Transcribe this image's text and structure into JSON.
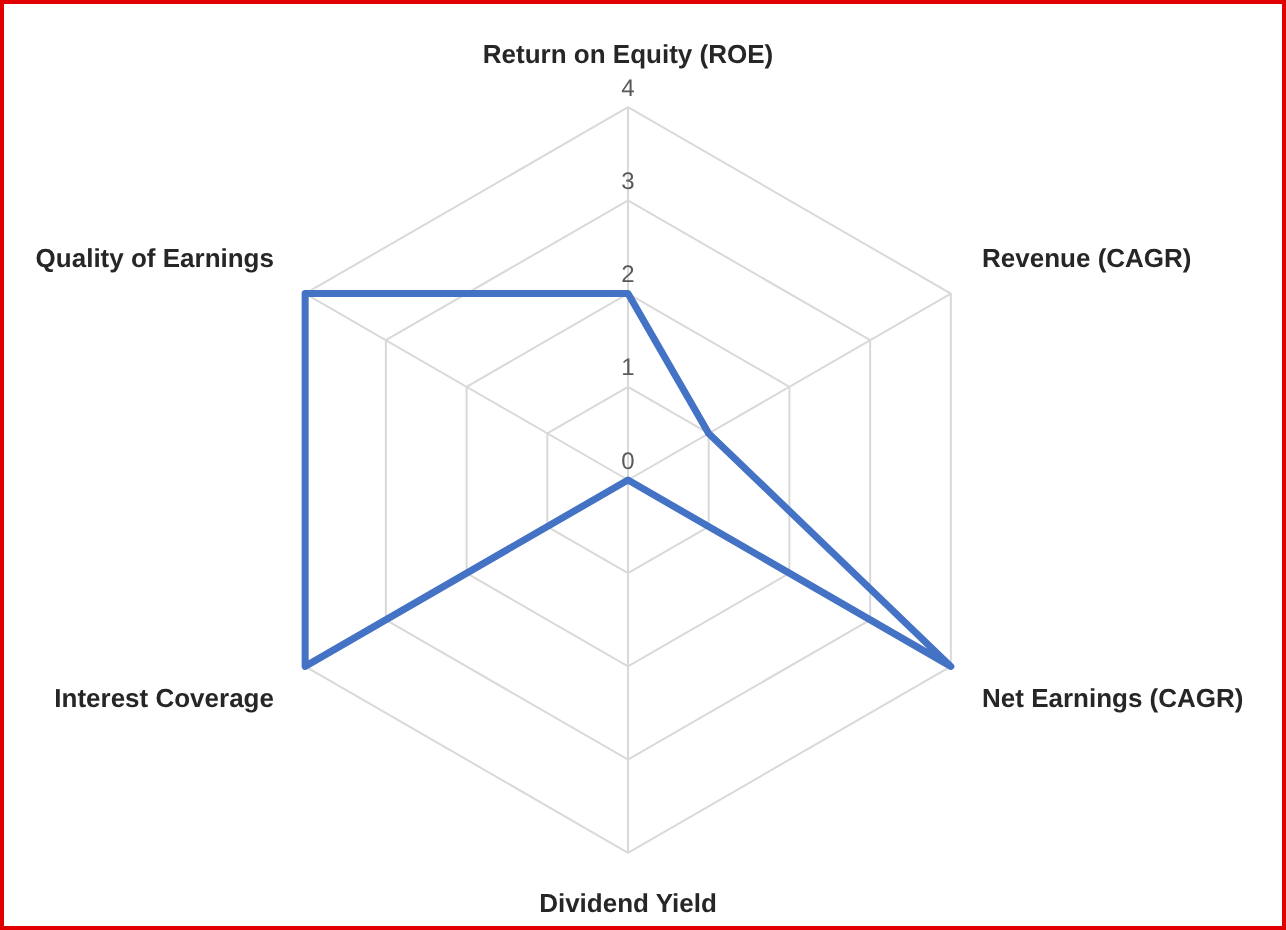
{
  "chart_data": {
    "type": "radar",
    "categories": [
      "Return on Equity (ROE)",
      "Revenue (CAGR)",
      "Net Earnings (CAGR)",
      "Dividend Yield",
      "Interest Coverage",
      "Quality of Earnings"
    ],
    "series": [
      {
        "color": "#4472c4",
        "values": [
          2,
          1,
          4,
          0,
          4,
          4
        ]
      }
    ],
    "ylim": [
      0,
      4
    ],
    "yticks": [
      0,
      1,
      2,
      3,
      4
    ],
    "grid": true,
    "legend": false,
    "marker": "none"
  }
}
